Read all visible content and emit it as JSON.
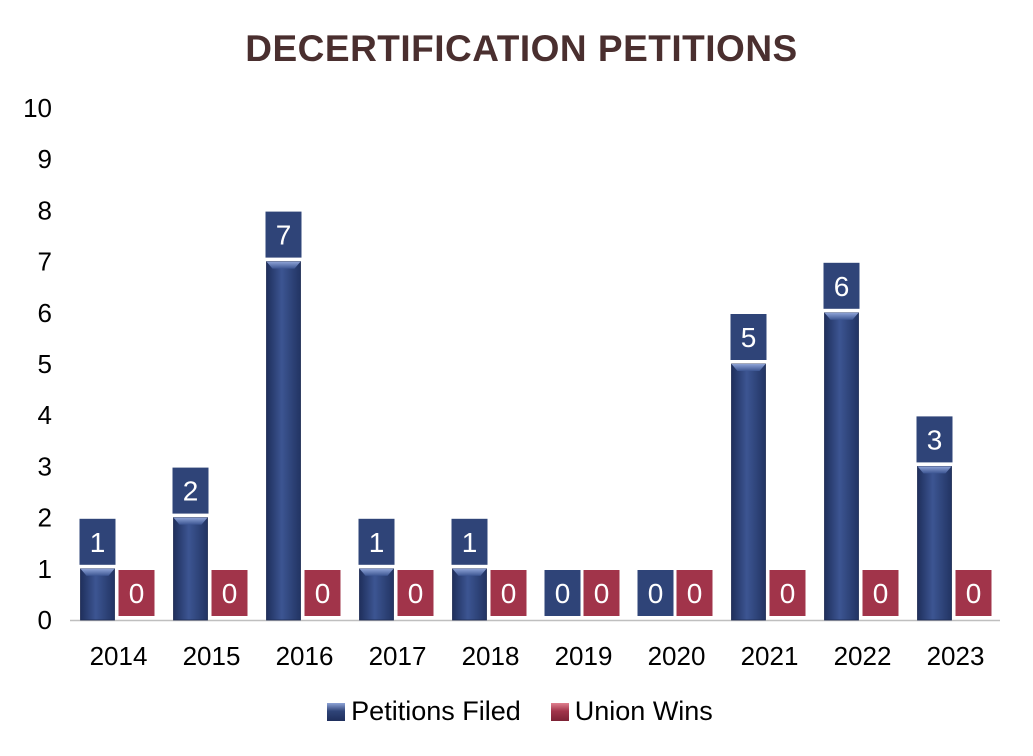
{
  "chart_data": {
    "type": "bar",
    "title": "DECERTIFICATION PETITIONS",
    "categories": [
      "2014",
      "2015",
      "2016",
      "2017",
      "2018",
      "2019",
      "2020",
      "2021",
      "2022",
      "2023"
    ],
    "series": [
      {
        "name": "Petitions Filed",
        "values": [
          1,
          2,
          7,
          1,
          1,
          0,
          0,
          5,
          6,
          3
        ],
        "color": "#2f4478"
      },
      {
        "name": "Union Wins",
        "values": [
          0,
          0,
          0,
          0,
          0,
          0,
          0,
          0,
          0,
          0
        ],
        "color": "#a1344a"
      }
    ],
    "ylim": [
      0,
      10
    ],
    "yticks": [
      "0",
      "1",
      "2",
      "3",
      "4",
      "5",
      "6",
      "7",
      "8",
      "9",
      "10"
    ],
    "grid": false,
    "legend_position": "bottom",
    "data_labels": true
  },
  "colors": {
    "title": "#4a2f2f",
    "petitions": "#2f4478",
    "union_wins": "#a1344a"
  }
}
